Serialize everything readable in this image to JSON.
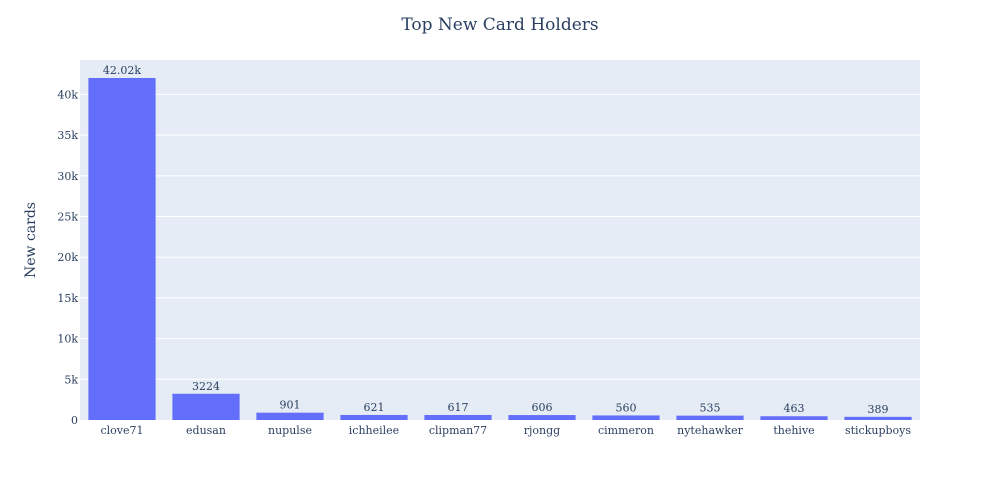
{
  "colors": {
    "bar": "#636efa",
    "plot_bg": "#e5ecf6",
    "grid": "#ffffff",
    "text": "#2a3f5f"
  },
  "chart_data": {
    "type": "bar",
    "title": "Top New Card Holders",
    "xlabel": "",
    "ylabel": "New cards",
    "categories": [
      "clove71",
      "edusan",
      "nupulse",
      "ichheilee",
      "clipman77",
      "rjongg",
      "cimmeron",
      "nytehawker",
      "thehive",
      "stickupboys"
    ],
    "values": [
      42020,
      3224,
      901,
      621,
      617,
      606,
      560,
      535,
      463,
      389
    ],
    "data_labels": [
      "42.02k",
      "3224",
      "901",
      "621",
      "617",
      "606",
      "560",
      "535",
      "463",
      "389"
    ],
    "yticks": [
      0,
      5000,
      10000,
      15000,
      20000,
      25000,
      30000,
      35000,
      40000
    ],
    "ytick_labels": [
      "0",
      "5k",
      "10k",
      "15k",
      "20k",
      "25k",
      "30k",
      "35k",
      "40k"
    ],
    "ylim": [
      0,
      44230
    ],
    "grid": true,
    "legend": "none"
  }
}
